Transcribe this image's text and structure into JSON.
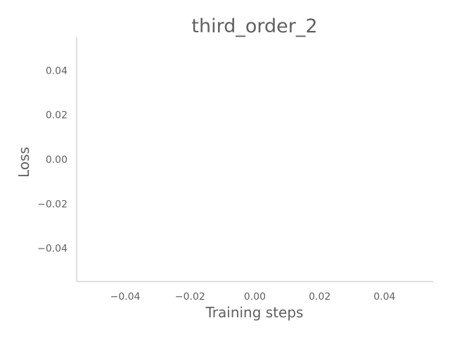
{
  "chart_data": {
    "type": "line",
    "title": "third_order_2",
    "xlabel": "Training steps",
    "ylabel": "Loss",
    "xlim": [
      -0.055,
      0.055
    ],
    "ylim": [
      -0.055,
      0.055
    ],
    "x_ticks": [
      -0.04,
      -0.02,
      0.0,
      0.02,
      0.04
    ],
    "y_ticks": [
      -0.04,
      -0.02,
      0.0,
      0.02,
      0.04
    ],
    "x_tick_labels": [
      "−0.04",
      "−0.02",
      "0.00",
      "0.02",
      "0.04"
    ],
    "y_tick_labels": [
      "−0.04",
      "−0.02",
      "0.00",
      "0.02",
      "0.04"
    ],
    "series": [],
    "grid": false,
    "legend": "none",
    "colors": {
      "text": "#606060",
      "spine": "#cccccc",
      "background": "#ffffff"
    }
  }
}
